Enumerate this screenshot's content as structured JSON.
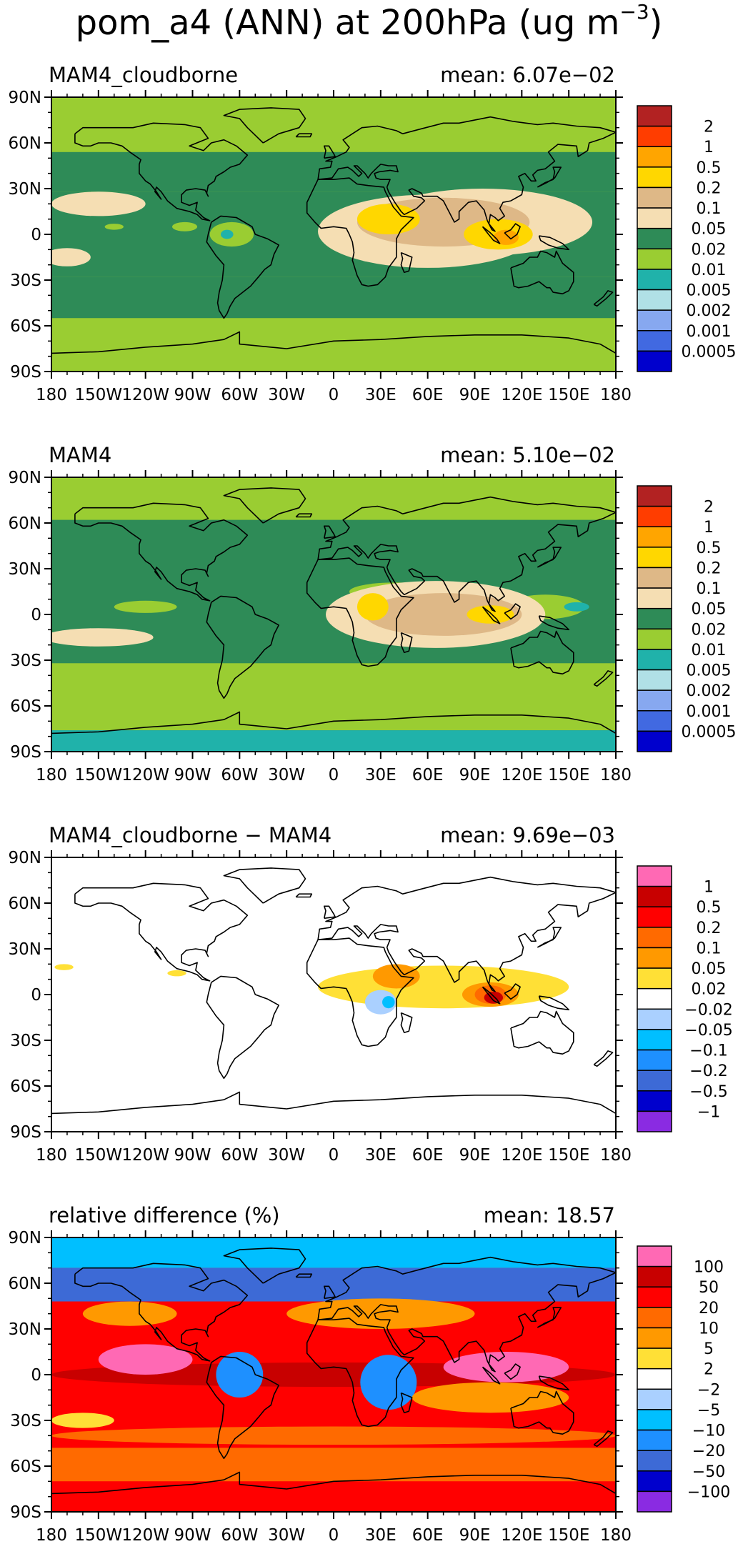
{
  "figure": {
    "title_main": "pom_a4 (ANN) at 200hPa (ug m",
    "title_exp": "−3",
    "title_close": ")"
  },
  "axes": {
    "lat_ticks": [
      "90N",
      "60N",
      "30N",
      "0",
      "30S",
      "60S",
      "90S"
    ],
    "lon_ticks": [
      "180",
      "150W",
      "120W",
      "90W",
      "60W",
      "30W",
      "0",
      "30E",
      "60E",
      "90E",
      "120E",
      "150E",
      "180"
    ]
  },
  "palettes": {
    "abs": {
      "colors": [
        "#b22222",
        "#ff3d00",
        "#ffa500",
        "#ffd700",
        "#deb887",
        "#f5deb3",
        "#2e8b57",
        "#9acd32",
        "#20b2aa",
        "#b0e0e6",
        "#87a8f0",
        "#4169e1",
        "#0000cd"
      ],
      "labels": [
        "2",
        "1",
        "0.5",
        "0.2",
        "0.1",
        "0.05",
        "0.02",
        "0.01",
        "0.005",
        "0.002",
        "0.001",
        "0.0005"
      ]
    },
    "diff": {
      "colors": [
        "#ff69b4",
        "#c80000",
        "#ff0000",
        "#ff6a00",
        "#ff9900",
        "#ffe036",
        "#ffffff",
        "#aad0ff",
        "#00bfff",
        "#1e90ff",
        "#3d6ad6",
        "#0000cd",
        "#8a2be2"
      ],
      "labels": [
        "1",
        "0.5",
        "0.2",
        "0.1",
        "0.05",
        "0.02",
        "−0.02",
        "−0.05",
        "−0.1",
        "−0.2",
        "−0.5",
        "−1"
      ]
    },
    "rel": {
      "colors": [
        "#ff69b4",
        "#c80000",
        "#ff0000",
        "#ff6a00",
        "#ff9900",
        "#ffe036",
        "#ffffff",
        "#aad0ff",
        "#00bfff",
        "#1e90ff",
        "#3d6ad6",
        "#0000cd",
        "#8a2be2"
      ],
      "labels": [
        "100",
        "50",
        "20",
        "10",
        "5",
        "2",
        "−2",
        "−5",
        "−10",
        "−20",
        "−50",
        "−100"
      ]
    }
  },
  "panels": [
    {
      "title": "MAM4_cloudborne",
      "mean": "mean: 6.07e−02",
      "palette": "abs",
      "background": "#9acd32",
      "bands": [
        {
          "lat": [
            54,
            90
          ],
          "color": "#9acd32"
        },
        {
          "lat": [
            28,
            54
          ],
          "color": "#2e8b57"
        },
        {
          "lat": [
            -28,
            28
          ],
          "color": "#2e8b57"
        },
        {
          "lat": [
            -55,
            -28
          ],
          "color": "#2e8b57"
        },
        {
          "lat": [
            -90,
            -55
          ],
          "color": "#9acd32"
        }
      ],
      "blobs": [
        {
          "lon": 60,
          "lat": 2,
          "rx": 70,
          "ry": 24,
          "color": "#f5deb3"
        },
        {
          "lon": 95,
          "lat": 8,
          "rx": 70,
          "ry": 22,
          "color": "#f5deb3"
        },
        {
          "lon": -150,
          "lat": 20,
          "rx": 30,
          "ry": 8,
          "color": "#f5deb3"
        },
        {
          "lon": -170,
          "lat": -15,
          "rx": 15,
          "ry": 6,
          "color": "#f5deb3"
        },
        {
          "lon": 70,
          "lat": 8,
          "rx": 55,
          "ry": 16,
          "color": "#deb887"
        },
        {
          "lon": 35,
          "lat": 10,
          "rx": 20,
          "ry": 10,
          "color": "#ffd700"
        },
        {
          "lon": 105,
          "lat": 0,
          "rx": 22,
          "ry": 10,
          "color": "#ffd700"
        },
        {
          "lon": 110,
          "lat": -2,
          "rx": 8,
          "ry": 5,
          "color": "#ffa500"
        },
        {
          "lon": -65,
          "lat": 0,
          "rx": 14,
          "ry": 8,
          "color": "#9acd32"
        },
        {
          "lon": -68,
          "lat": 0,
          "rx": 4,
          "ry": 3,
          "color": "#20b2aa"
        },
        {
          "lon": -95,
          "lat": 5,
          "rx": 8,
          "ry": 3,
          "color": "#9acd32"
        },
        {
          "lon": -140,
          "lat": 5,
          "rx": 6,
          "ry": 2,
          "color": "#9acd32"
        }
      ]
    },
    {
      "title": "MAM4",
      "mean": "mean: 5.10e−02",
      "palette": "abs",
      "background": "#2e8b57",
      "bands": [
        {
          "lat": [
            62,
            90
          ],
          "color": "#9acd32"
        },
        {
          "lat": [
            -32,
            62
          ],
          "color": "#2e8b57"
        },
        {
          "lat": [
            -76,
            -32
          ],
          "color": "#9acd32"
        },
        {
          "lat": [
            -90,
            -76
          ],
          "color": "#20b2aa"
        }
      ],
      "blobs": [
        {
          "lon": 40,
          "lat": 15,
          "rx": 30,
          "ry": 6,
          "color": "#9acd32"
        },
        {
          "lon": -120,
          "lat": 5,
          "rx": 20,
          "ry": 4,
          "color": "#9acd32"
        },
        {
          "lon": 135,
          "lat": 5,
          "rx": 25,
          "ry": 8,
          "color": "#9acd32"
        },
        {
          "lon": 65,
          "lat": 0,
          "rx": 70,
          "ry": 22,
          "color": "#f5deb3"
        },
        {
          "lon": -150,
          "lat": -15,
          "rx": 35,
          "ry": 6,
          "color": "#f5deb3"
        },
        {
          "lon": 70,
          "lat": 0,
          "rx": 50,
          "ry": 14,
          "color": "#deb887"
        },
        {
          "lon": 25,
          "lat": 5,
          "rx": 10,
          "ry": 9,
          "color": "#ffd700"
        },
        {
          "lon": 100,
          "lat": 0,
          "rx": 15,
          "ry": 6,
          "color": "#ffd700"
        },
        {
          "lon": 155,
          "lat": 5,
          "rx": 8,
          "ry": 3,
          "color": "#20b2aa"
        }
      ]
    },
    {
      "title": "MAM4_cloudborne − MAM4",
      "mean": "mean: 9.69e−03",
      "palette": "diff",
      "background": "#ffffff",
      "bands": [],
      "blobs": [
        {
          "lon": 70,
          "lat": 5,
          "rx": 80,
          "ry": 14,
          "color": "#ffe036"
        },
        {
          "lon": -100,
          "lat": 14,
          "rx": 6,
          "ry": 2,
          "color": "#ffe036"
        },
        {
          "lon": -172,
          "lat": 18,
          "rx": 6,
          "ry": 2,
          "color": "#ffe036"
        },
        {
          "lon": 40,
          "lat": 12,
          "rx": 15,
          "ry": 8,
          "color": "#ff9900"
        },
        {
          "lon": 100,
          "lat": 0,
          "rx": 18,
          "ry": 8,
          "color": "#ff9900"
        },
        {
          "lon": 100,
          "lat": 0,
          "rx": 10,
          "ry": 6,
          "color": "#ff6a00"
        },
        {
          "lon": 102,
          "lat": -2,
          "rx": 6,
          "ry": 4,
          "color": "#c80000"
        },
        {
          "lon": 30,
          "lat": -5,
          "rx": 10,
          "ry": 8,
          "color": "#aad0ff"
        },
        {
          "lon": 35,
          "lat": -5,
          "rx": 4,
          "ry": 4,
          "color": "#00bfff"
        }
      ]
    },
    {
      "title": "relative difference (%)",
      "mean": "mean: 18.57",
      "palette": "rel",
      "background": "#ff0000",
      "bands": [
        {
          "lat": [
            70,
            90
          ],
          "color": "#00bfff"
        },
        {
          "lat": [
            48,
            70
          ],
          "color": "#3d6ad6"
        },
        {
          "lat": [
            -15,
            48
          ],
          "color": "#ff0000"
        },
        {
          "lat": [
            -48,
            -15
          ],
          "color": "#ff0000"
        },
        {
          "lat": [
            -70,
            -48
          ],
          "color": "#ff6a00"
        },
        {
          "lat": [
            -90,
            -70
          ],
          "color": "#ff0000"
        }
      ],
      "blobs": [
        {
          "lon": 30,
          "lat": 40,
          "rx": 60,
          "ry": 10,
          "color": "#ff9900"
        },
        {
          "lon": -130,
          "lat": 40,
          "rx": 30,
          "ry": 8,
          "color": "#ff9900"
        },
        {
          "lon": 0,
          "lat": 0,
          "rx": 180,
          "ry": 8,
          "color": "#c80000"
        },
        {
          "lon": -60,
          "lat": 0,
          "rx": 15,
          "ry": 15,
          "color": "#1e90ff"
        },
        {
          "lon": 35,
          "lat": -5,
          "rx": 18,
          "ry": 18,
          "color": "#1e90ff"
        },
        {
          "lon": 110,
          "lat": 5,
          "rx": 40,
          "ry": 10,
          "color": "#ff69b4"
        },
        {
          "lon": -120,
          "lat": 10,
          "rx": 30,
          "ry": 10,
          "color": "#ff69b4"
        },
        {
          "lon": 100,
          "lat": -15,
          "rx": 50,
          "ry": 10,
          "color": "#ff9900"
        },
        {
          "lon": -160,
          "lat": -30,
          "rx": 20,
          "ry": 5,
          "color": "#ffe036"
        },
        {
          "lon": 0,
          "lat": -40,
          "rx": 180,
          "ry": 6,
          "color": "#ff6a00"
        }
      ]
    }
  ]
}
